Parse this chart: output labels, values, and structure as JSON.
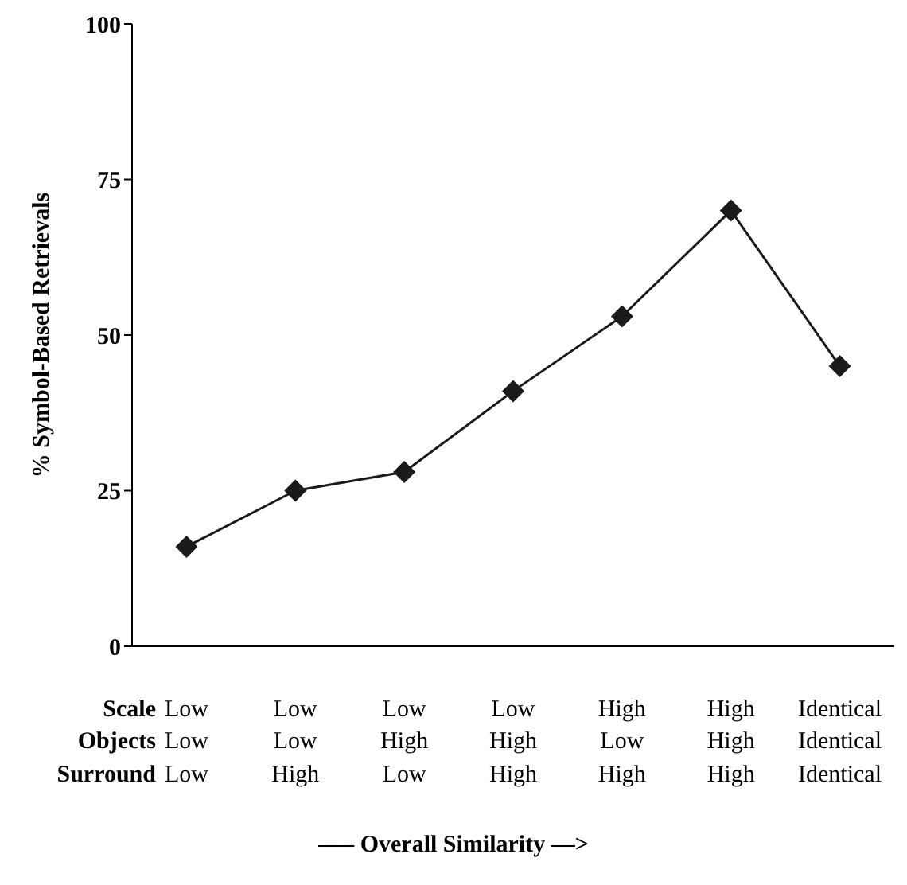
{
  "chart_data": {
    "type": "line",
    "ylabel": "%  Symbol-Based Retrievals",
    "xlabel": "—– Overall Similarity —>",
    "categories": [
      "Low\nLow\nLow",
      "Low\nLow\nHigh",
      "Low\nHigh\nLow",
      "Low\nHigh\nHigh",
      "High\nLow\nHigh",
      "High\nHigh\nHigh",
      "Identical\nIdentical\nIdentical"
    ],
    "annotations": [
      "Scale",
      "Objects",
      "Surround"
    ],
    "series": [
      {
        "color": "#1a1a1a",
        "values": [
          16,
          25,
          28,
          41,
          53,
          70,
          45
        ]
      }
    ],
    "ylim": [
      0,
      100
    ],
    "yticks": [
      0,
      25,
      50,
      75,
      100
    ],
    "grid": false,
    "marker": "diamond",
    "line_style": "solid"
  }
}
